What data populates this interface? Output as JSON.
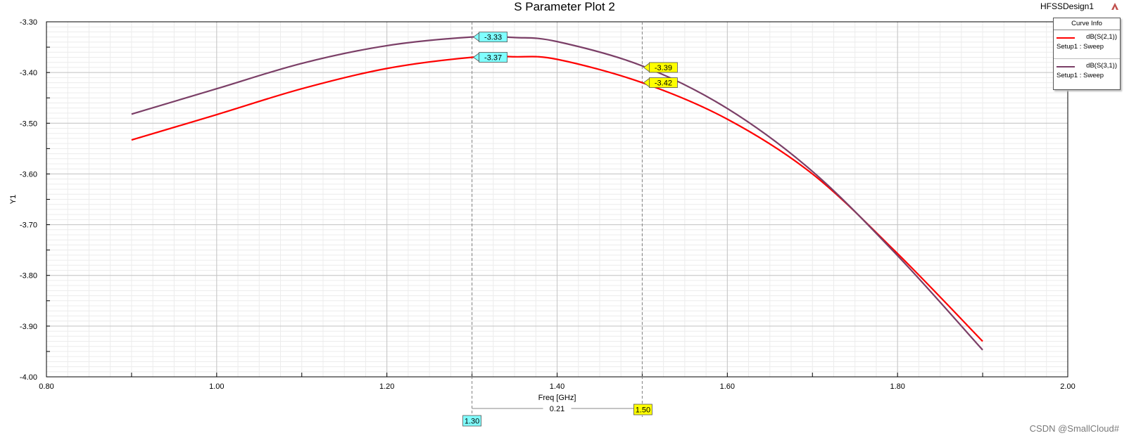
{
  "header": {
    "title": "S Parameter Plot 2",
    "design": "HFSSDesign1"
  },
  "legend": {
    "title": "Curve Info",
    "entries": [
      {
        "name": "dB(S(2,1))",
        "sub": "Setup1 : Sweep",
        "color": "#ff0000"
      },
      {
        "name": "dB(S(3,1))",
        "sub": "Setup1 : Sweep",
        "color": "#7b3f67"
      }
    ]
  },
  "chart_data": {
    "type": "line",
    "title": "S Parameter Plot 2",
    "xlabel": "Freq [GHz]",
    "ylabel": "Y1",
    "xlim": [
      0.8,
      2.0
    ],
    "ylim": [
      -4.0,
      -3.3
    ],
    "x_ticks": [
      "0.80",
      "1.00",
      "1.20",
      "1.40",
      "1.60",
      "1.80",
      "2.00"
    ],
    "y_ticks": [
      "-3.30",
      "-3.40",
      "-3.50",
      "-3.60",
      "-3.70",
      "-3.80",
      "-3.90",
      "-4.00"
    ],
    "grid": true,
    "legend_position": "top-right",
    "series": [
      {
        "name": "dB(S(2,1))",
        "color": "#ff0000",
        "x": [
          0.9,
          1.0,
          1.1,
          1.2,
          1.3,
          1.35,
          1.4,
          1.5,
          1.6,
          1.7,
          1.8,
          1.9
        ],
        "y": [
          -3.533,
          -3.483,
          -3.432,
          -3.392,
          -3.37,
          -3.369,
          -3.374,
          -3.42,
          -3.492,
          -3.6,
          -3.757,
          -3.93
        ]
      },
      {
        "name": "dB(S(3,1))",
        "color": "#7b3f67",
        "x": [
          0.9,
          1.0,
          1.1,
          1.2,
          1.3,
          1.35,
          1.4,
          1.5,
          1.6,
          1.7,
          1.8,
          1.9
        ],
        "y": [
          -3.482,
          -3.432,
          -3.382,
          -3.347,
          -3.33,
          -3.331,
          -3.339,
          -3.387,
          -3.471,
          -3.595,
          -3.761,
          -3.947
        ]
      }
    ],
    "markers": {
      "x_markers": [
        {
          "x": 1.3,
          "label": "1.30",
          "color": "#80ffff"
        },
        {
          "x": 1.5,
          "label": "1.50",
          "color": "#ffff00"
        }
      ],
      "delta": {
        "label": "0.21"
      },
      "value_labels": [
        {
          "x": 1.3,
          "y": -3.33,
          "label": "-3.33",
          "color": "#80ffff"
        },
        {
          "x": 1.3,
          "y": -3.37,
          "label": "-3.37",
          "color": "#80ffff"
        },
        {
          "x": 1.5,
          "y": -3.39,
          "label": "-3.39",
          "color": "#ffff00"
        },
        {
          "x": 1.5,
          "y": -3.42,
          "label": "-3.42",
          "color": "#ffff00"
        }
      ]
    }
  },
  "watermark": "CSDN @SmallCloud#"
}
